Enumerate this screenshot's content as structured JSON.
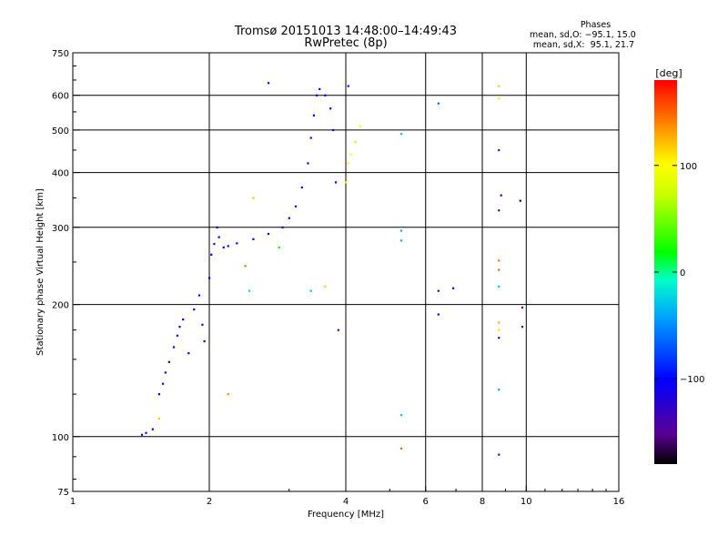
{
  "chart_data": {
    "type": "scatter",
    "title": "Tromsø 20151013 14:48:00–14:49:43",
    "subtitle": "RwPretec (8p)",
    "xlabel": "Frequency [MHz]",
    "ylabel": "Stationary phase Virtual Height [km]",
    "x_scale": "log",
    "y_scale": "log",
    "xlim": [
      1,
      16
    ],
    "ylim": [
      75,
      750
    ],
    "x_ticks": [
      1,
      2,
      4,
      6,
      8,
      10,
      16
    ],
    "x_tick_labels": [
      "1",
      "2",
      "4",
      "6",
      "8",
      "10",
      "16"
    ],
    "y_ticks": [
      75,
      100,
      200,
      300,
      400,
      500,
      600,
      750
    ],
    "y_tick_labels": [
      "75",
      "100",
      "200",
      "300",
      "400",
      "500",
      "600",
      "750"
    ],
    "grid_x": [
      2,
      4,
      6,
      8,
      10
    ],
    "grid_y": [
      100,
      200,
      300,
      400,
      500,
      600
    ],
    "grid": true,
    "phase_title": "Phases",
    "phase_stats": [
      "mean, sd,O: −95.1, 15.0",
      "mean, sd,X:  95.1, 21.7"
    ],
    "colorbar": {
      "label": "[deg]",
      "range": [
        -180,
        180
      ],
      "ticks": [
        100,
        0,
        -100
      ],
      "tick_labels": [
        "100",
        "0",
        "−100"
      ]
    },
    "series": [
      {
        "points": [
          [
            1.42,
            101,
            -110
          ],
          [
            1.45,
            102,
            -105
          ],
          [
            1.5,
            104,
            -112
          ],
          [
            1.55,
            125,
            -100
          ],
          [
            1.58,
            132,
            -95
          ],
          [
            1.6,
            140,
            -108
          ],
          [
            1.63,
            148,
            -102
          ],
          [
            1.67,
            160,
            -98
          ],
          [
            1.7,
            170,
            -110
          ],
          [
            1.72,
            178,
            -104
          ],
          [
            1.75,
            185,
            -100
          ],
          [
            1.8,
            155,
            -106
          ],
          [
            1.85,
            195,
            -95
          ],
          [
            1.9,
            210,
            -102
          ],
          [
            1.93,
            180,
            -108
          ],
          [
            1.95,
            165,
            -100
          ],
          [
            2.0,
            230,
            -104
          ],
          [
            2.02,
            260,
            -100
          ],
          [
            2.05,
            275,
            -96
          ],
          [
            2.08,
            300,
            -102
          ],
          [
            2.1,
            285,
            -100
          ],
          [
            2.15,
            270,
            -108
          ],
          [
            2.2,
            272,
            -104
          ],
          [
            2.3,
            276,
            -100
          ],
          [
            2.5,
            282,
            -98
          ],
          [
            2.7,
            290,
            -102
          ],
          [
            2.9,
            300,
            -100
          ],
          [
            3.0,
            315,
            -104
          ],
          [
            3.1,
            335,
            -98
          ],
          [
            3.2,
            370,
            -100
          ],
          [
            3.3,
            420,
            -102
          ],
          [
            3.35,
            480,
            -96
          ],
          [
            3.4,
            540,
            -100
          ],
          [
            3.45,
            600,
            -104
          ],
          [
            3.5,
            620,
            -100
          ],
          [
            3.6,
            600,
            -102
          ],
          [
            3.7,
            560,
            -98
          ],
          [
            3.75,
            500,
            -100
          ],
          [
            3.8,
            380,
            -104
          ],
          [
            4.0,
            380,
            100
          ],
          [
            4.05,
            420,
            105
          ],
          [
            4.1,
            440,
            98
          ],
          [
            4.2,
            470,
            110
          ],
          [
            4.3,
            510,
            102
          ],
          [
            2.7,
            640,
            -105
          ],
          [
            4.05,
            630,
            -110
          ],
          [
            5.3,
            490,
            -30
          ],
          [
            5.3,
            295,
            -40
          ],
          [
            5.3,
            280,
            -35
          ],
          [
            5.3,
            112,
            -30
          ],
          [
            5.3,
            94,
            150
          ],
          [
            6.4,
            575,
            -60
          ],
          [
            6.4,
            215,
            -130
          ],
          [
            6.4,
            190,
            -120
          ],
          [
            6.9,
            218,
            -110
          ],
          [
            8.7,
            630,
            120
          ],
          [
            8.7,
            590,
            110
          ],
          [
            8.7,
            450,
            -150
          ],
          [
            8.8,
            355,
            -115
          ],
          [
            8.7,
            328,
            -140
          ],
          [
            8.7,
            252,
            150
          ],
          [
            8.7,
            240,
            155
          ],
          [
            8.7,
            220,
            -30
          ],
          [
            8.7,
            182,
            130
          ],
          [
            8.7,
            175,
            110
          ],
          [
            8.7,
            168,
            -115
          ],
          [
            8.7,
            128,
            -40
          ],
          [
            8.7,
            91,
            -90
          ],
          [
            9.7,
            345,
            -170
          ],
          [
            9.8,
            197,
            -150
          ],
          [
            9.8,
            178,
            -150
          ],
          [
            3.85,
            175,
            -150
          ],
          [
            3.6,
            220,
            120
          ],
          [
            3.35,
            215,
            -30
          ],
          [
            2.85,
            270,
            20
          ],
          [
            2.45,
            215,
            -20
          ],
          [
            2.4,
            245,
            150
          ],
          [
            2.2,
            125,
            140
          ],
          [
            1.55,
            110,
            120
          ],
          [
            2.5,
            350,
            120
          ]
        ]
      }
    ]
  }
}
